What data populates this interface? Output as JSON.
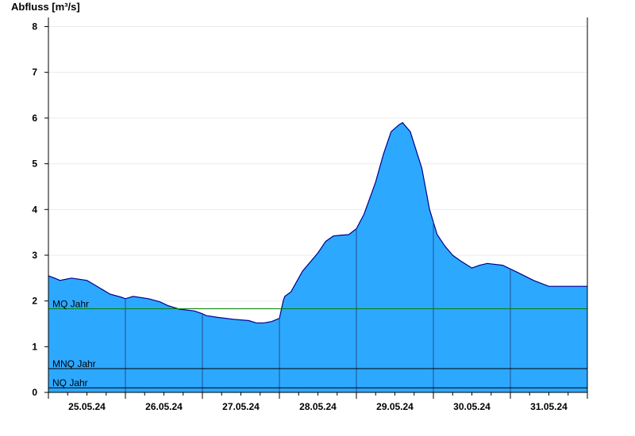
{
  "chart_data": {
    "type": "area",
    "ylabel": "Abfluss [m³/s]",
    "xlabel": "",
    "title": "",
    "ylim": [
      0,
      8.2
    ],
    "xlim": [
      0,
      7
    ],
    "yticks": [
      0,
      1,
      2,
      3,
      4,
      5,
      6,
      7,
      8
    ],
    "day_labels": [
      "25.05.24",
      "26.05.24",
      "27.05.24",
      "28.05.24",
      "29.05.24",
      "30.05.24",
      "31.05.24"
    ],
    "grid": true,
    "fill_color": "#2da8ff",
    "line_color": "#00008b",
    "series": [
      {
        "x": [
          0,
          0.08,
          0.15,
          0.3,
          0.5,
          0.6,
          0.7,
          0.8,
          0.95,
          1.0,
          1.1,
          1.3,
          1.45,
          1.55,
          1.7,
          1.9,
          2.0,
          2.05,
          2.2,
          2.4,
          2.6,
          2.7,
          2.8,
          2.9,
          3.0,
          3.05,
          3.07,
          3.15,
          3.3,
          3.5,
          3.6,
          3.7,
          3.8,
          3.9,
          4.0,
          4.1,
          4.25,
          4.35,
          4.45,
          4.55,
          4.6,
          4.7,
          4.85,
          4.95,
          5.05,
          5.15,
          5.25,
          5.35,
          5.5,
          5.6,
          5.7,
          5.9,
          6.1,
          6.3,
          6.5,
          6.7,
          6.83,
          7.0
        ],
        "y": [
          2.55,
          2.5,
          2.45,
          2.5,
          2.45,
          2.35,
          2.25,
          2.15,
          2.08,
          2.05,
          2.1,
          2.05,
          1.98,
          1.9,
          1.82,
          1.78,
          1.72,
          1.68,
          1.64,
          1.6,
          1.57,
          1.52,
          1.52,
          1.55,
          1.62,
          2.0,
          2.1,
          2.2,
          2.65,
          3.05,
          3.3,
          3.42,
          3.44,
          3.45,
          3.58,
          3.9,
          4.6,
          5.2,
          5.7,
          5.85,
          5.9,
          5.7,
          4.9,
          4.0,
          3.45,
          3.2,
          3.0,
          2.88,
          2.72,
          2.78,
          2.82,
          2.78,
          2.62,
          2.45,
          2.32,
          2.32,
          2.32,
          2.32
        ]
      }
    ],
    "reference_lines": [
      {
        "name": "MQ Jahr",
        "value": 1.83,
        "color": "#008000"
      },
      {
        "name": "MNQ Jahr",
        "value": 0.52,
        "color": "#000000"
      },
      {
        "name": "NQ Jahr",
        "value": 0.1,
        "color": "#000000"
      }
    ]
  }
}
